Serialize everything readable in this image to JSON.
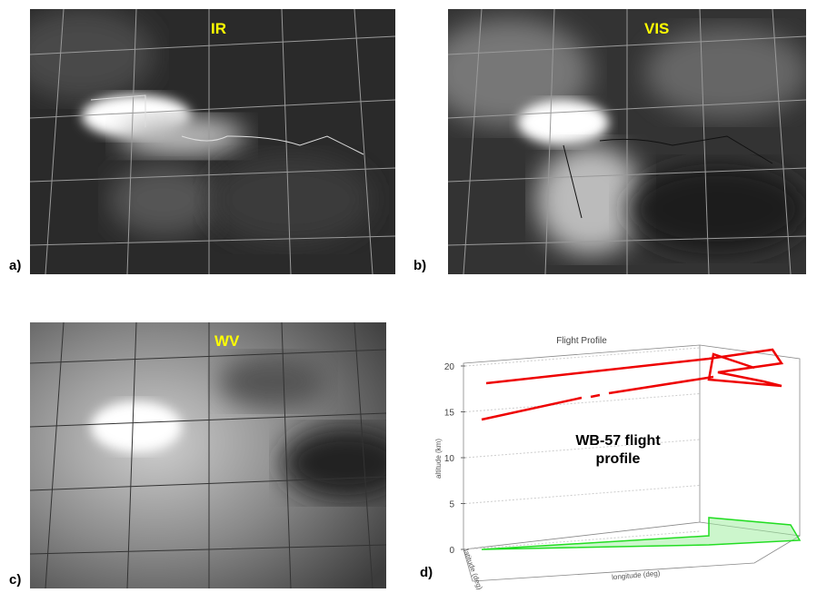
{
  "panels": [
    {
      "label": "a)",
      "title": "IR"
    },
    {
      "label": "b)",
      "title": "VIS"
    },
    {
      "label": "c)",
      "title": "WV"
    },
    {
      "label": "d)"
    }
  ],
  "flight_plot": {
    "title": "Flight Profile",
    "annotation": [
      "WB-57 flight",
      "profile"
    ],
    "ylabel": "altitude (km)",
    "xlabel": "longitude (deg)",
    "zlabel": "latitude (deg)",
    "ylim": [
      0,
      20
    ],
    "yticks": [
      0,
      5,
      10,
      15,
      20
    ],
    "grid": true
  }
}
